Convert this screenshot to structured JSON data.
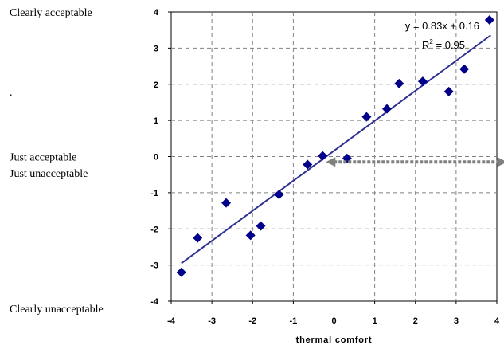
{
  "chart_data": {
    "type": "scatter",
    "title": "",
    "xlabel": "thermal comfort",
    "ylabel": "",
    "xlim": [
      -4,
      4
    ],
    "ylim": [
      -4,
      4
    ],
    "x_ticks": [
      "-4",
      "-3",
      "-2",
      "-1",
      "0",
      "1",
      "2",
      "3",
      "4"
    ],
    "y_ticks": [
      "-4",
      "-3",
      "-2",
      "-1",
      "0",
      "1",
      "2",
      "3",
      "4"
    ],
    "grid": true,
    "legend": "none",
    "series": [
      {
        "name": "",
        "marker": "diamond",
        "color": "#00008b",
        "points": [
          {
            "x": -3.75,
            "y": -3.2
          },
          {
            "x": -3.35,
            "y": -2.25
          },
          {
            "x": -2.65,
            "y": -1.28
          },
          {
            "x": -2.05,
            "y": -2.18
          },
          {
            "x": -1.8,
            "y": -1.92
          },
          {
            "x": -1.35,
            "y": -1.05
          },
          {
            "x": -0.65,
            "y": -0.22
          },
          {
            "x": -0.28,
            "y": 0.02
          },
          {
            "x": 0.32,
            "y": -0.05
          },
          {
            "x": 0.8,
            "y": 1.1
          },
          {
            "x": 1.3,
            "y": 1.32
          },
          {
            "x": 1.6,
            "y": 2.02
          },
          {
            "x": 2.18,
            "y": 2.08
          },
          {
            "x": 2.82,
            "y": 1.8
          },
          {
            "x": 3.2,
            "y": 2.42
          },
          {
            "x": 3.82,
            "y": 3.78
          }
        ]
      }
    ],
    "trendline": {
      "slope": 0.83,
      "intercept": 0.16,
      "x_range": [
        -3.75,
        3.85
      ],
      "color": "#2f3192",
      "equation": "y = 0.83x + 0.16",
      "r2_prefix": "R",
      "r2_exp": "2",
      "r2_suffix": " = 0.95"
    },
    "arrow": {
      "from_x": -0.2,
      "to_x": 4.25,
      "y": -0.15,
      "color": "#808080"
    },
    "side_labels": [
      {
        "text": "Clearly acceptable",
        "y": 4.0
      },
      {
        "text": ".",
        "y": 1.8
      },
      {
        "text": "Just acceptable",
        "y": 0.0
      },
      {
        "text": "Just unacceptable",
        "y": -0.45
      },
      {
        "text": "Clearly unacceptable",
        "y": -4.2
      }
    ]
  }
}
